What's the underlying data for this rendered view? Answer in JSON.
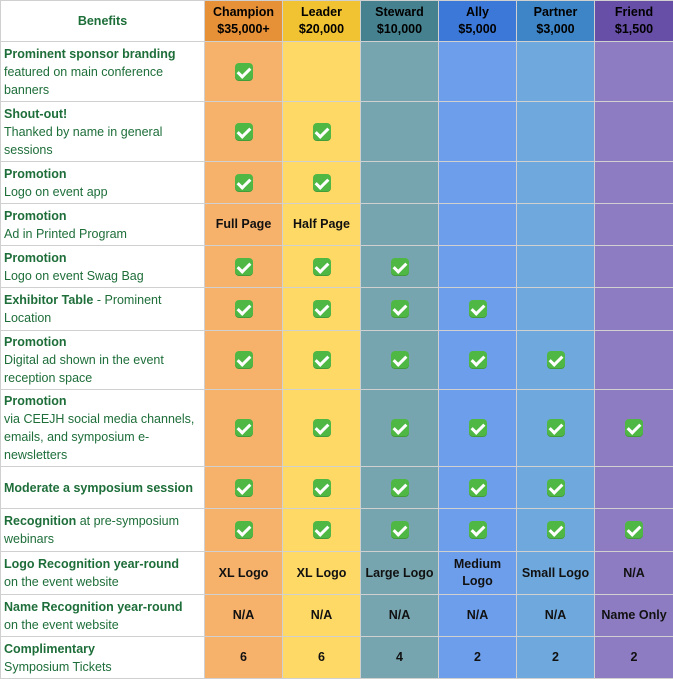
{
  "header": {
    "benefits_label": "Benefits",
    "tiers": [
      {
        "name": "Champion",
        "price": "$35,000+"
      },
      {
        "name": "Leader",
        "price": "$20,000"
      },
      {
        "name": "Steward",
        "price": "$10,000"
      },
      {
        "name": "Ally",
        "price": "$5,000"
      },
      {
        "name": "Partner",
        "price": "$3,000"
      },
      {
        "name": "Friend",
        "price": "$1,500"
      }
    ]
  },
  "colors": {
    "benefit_text": "#1e6e3a",
    "tier_cells": [
      "#f6b26b",
      "#ffd966",
      "#76a5af",
      "#6d9eeb",
      "#6fa8dc",
      "#8e7cc3"
    ],
    "tier_headers": [
      "#e69138",
      "#f1c232",
      "#45818e",
      "#3c78d8",
      "#3d85c6",
      "#674ea7"
    ]
  },
  "check_icon": "green-checkmark-icon",
  "rows": [
    {
      "title": "Prominent sponsor branding",
      "rest": "",
      "desc": "featured on main conference banners",
      "cells": [
        "check",
        "",
        "",
        "",
        "",
        ""
      ]
    },
    {
      "title": "Shout-out!",
      "rest": "",
      "desc": "Thanked by name in general sessions",
      "cells": [
        "check",
        "check",
        "",
        "",
        "",
        ""
      ]
    },
    {
      "title": "Promotion",
      "rest": "",
      "desc": "Logo on event app",
      "cells": [
        "check",
        "check",
        "",
        "",
        "",
        ""
      ]
    },
    {
      "title": "Promotion",
      "rest": "",
      "desc": "Ad in Printed Program",
      "cells": [
        "Full Page",
        "Half Page",
        "",
        "",
        "",
        ""
      ]
    },
    {
      "title": "Promotion",
      "rest": "",
      "desc": "Logo on event Swag Bag",
      "cells": [
        "check",
        "check",
        "check",
        "",
        "",
        ""
      ]
    },
    {
      "title": "Exhibitor Table",
      "rest": " - Prominent Location",
      "desc": "",
      "cells": [
        "check",
        "check",
        "check",
        "check",
        "",
        ""
      ]
    },
    {
      "title": "Promotion",
      "rest": "",
      "desc": "Digital ad shown in the event reception space",
      "cells": [
        "check",
        "check",
        "check",
        "check",
        "check",
        ""
      ]
    },
    {
      "title": "Promotion",
      "rest": "",
      "desc": "via CEEJH social media channels, emails, and symposium e-newsletters",
      "cells": [
        "check",
        "check",
        "check",
        "check",
        "check",
        "check"
      ]
    },
    {
      "title": "Moderate a symposium session",
      "rest": "",
      "desc": "",
      "cells": [
        "check",
        "check",
        "check",
        "check",
        "check",
        ""
      ]
    },
    {
      "title": "Recognition",
      "rest": " at pre-symposium webinars",
      "desc": "",
      "cells": [
        "check",
        "check",
        "check",
        "check",
        "check",
        "check"
      ]
    },
    {
      "title": "Logo Recognition year-round",
      "rest": "",
      "desc": "on the event website",
      "cells": [
        "XL Logo",
        "XL Logo",
        "Large Logo",
        "Medium Logo",
        "Small Logo",
        "N/A"
      ]
    },
    {
      "title": "Name Recognition year-round",
      "rest": "",
      "desc": "on the event website",
      "cells": [
        "N/A",
        "N/A",
        "N/A",
        "N/A",
        "N/A",
        "Name Only"
      ]
    },
    {
      "title": "Complimentary",
      "rest": "",
      "desc": "Symposium Tickets",
      "cells": [
        "6",
        "6",
        "4",
        "2",
        "2",
        "2"
      ]
    }
  ]
}
